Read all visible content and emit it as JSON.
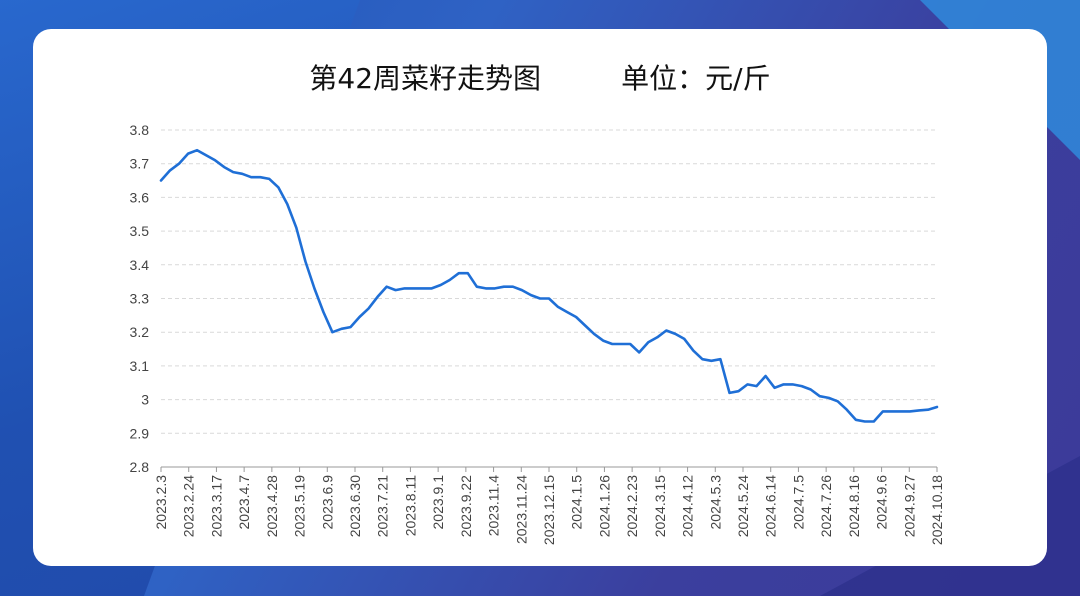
{
  "chart_data": {
    "type": "line",
    "title": "第42周菜籽走势图",
    "unit_label": "单位：元/斤",
    "ylim": [
      2.8,
      3.8
    ],
    "yticks": [
      "2.8",
      "2.9",
      "3",
      "3.1",
      "3.2",
      "3.3",
      "3.4",
      "3.5",
      "3.6",
      "3.7",
      "3.8"
    ],
    "ytick_values": [
      2.8,
      2.9,
      3.0,
      3.1,
      3.2,
      3.3,
      3.4,
      3.5,
      3.6,
      3.7,
      3.8
    ],
    "x_tick_labels": [
      "2023.2.3",
      "2023.2.24",
      "2023.3.17",
      "2023.4.7",
      "2023.4.28",
      "2023.5.19",
      "2023.6.9",
      "2023.6.30",
      "2023.7.21",
      "2023.8.11",
      "2023.9.1",
      "2023.9.22",
      "2023.11.4",
      "2023.11.24",
      "2023.12.15",
      "2024.1.5",
      "2024.1.26",
      "2024.2.23",
      "2024.3.15",
      "2024.4.12",
      "2024.5.3",
      "2024.5.24",
      "2024.6.14",
      "2024.7.5",
      "2024.7.26",
      "2024.8.16",
      "2024.9.6",
      "2024.9.27",
      "2024.10.18"
    ],
    "grid": true,
    "line_color": "#1f6fd6",
    "series": [
      {
        "values": [
          3.65,
          3.68,
          3.7,
          3.73,
          3.74,
          3.725,
          3.71,
          3.69,
          3.675,
          3.67,
          3.66,
          3.66,
          3.655,
          3.63,
          3.58,
          3.51,
          3.41,
          3.33,
          3.26,
          3.2,
          3.21,
          3.215,
          3.245,
          3.27,
          3.305,
          3.335,
          3.325,
          3.33,
          3.33,
          3.33,
          3.33,
          3.34,
          3.355,
          3.375,
          3.375,
          3.335,
          3.33,
          3.33,
          3.335,
          3.335,
          3.325,
          3.31,
          3.3,
          3.3,
          3.275,
          3.26,
          3.245,
          3.22,
          3.195,
          3.175,
          3.165,
          3.165,
          3.165,
          3.14,
          3.17,
          3.185,
          3.205,
          3.195,
          3.18,
          3.145,
          3.12,
          3.115,
          3.12,
          3.02,
          3.025,
          3.045,
          3.04,
          3.07,
          3.035,
          3.045,
          3.045,
          3.04,
          3.03,
          3.01,
          3.005,
          2.995,
          2.97,
          2.94,
          2.935,
          2.935,
          2.965,
          2.965,
          2.965,
          2.965,
          2.968,
          2.97,
          2.978
        ]
      }
    ]
  }
}
